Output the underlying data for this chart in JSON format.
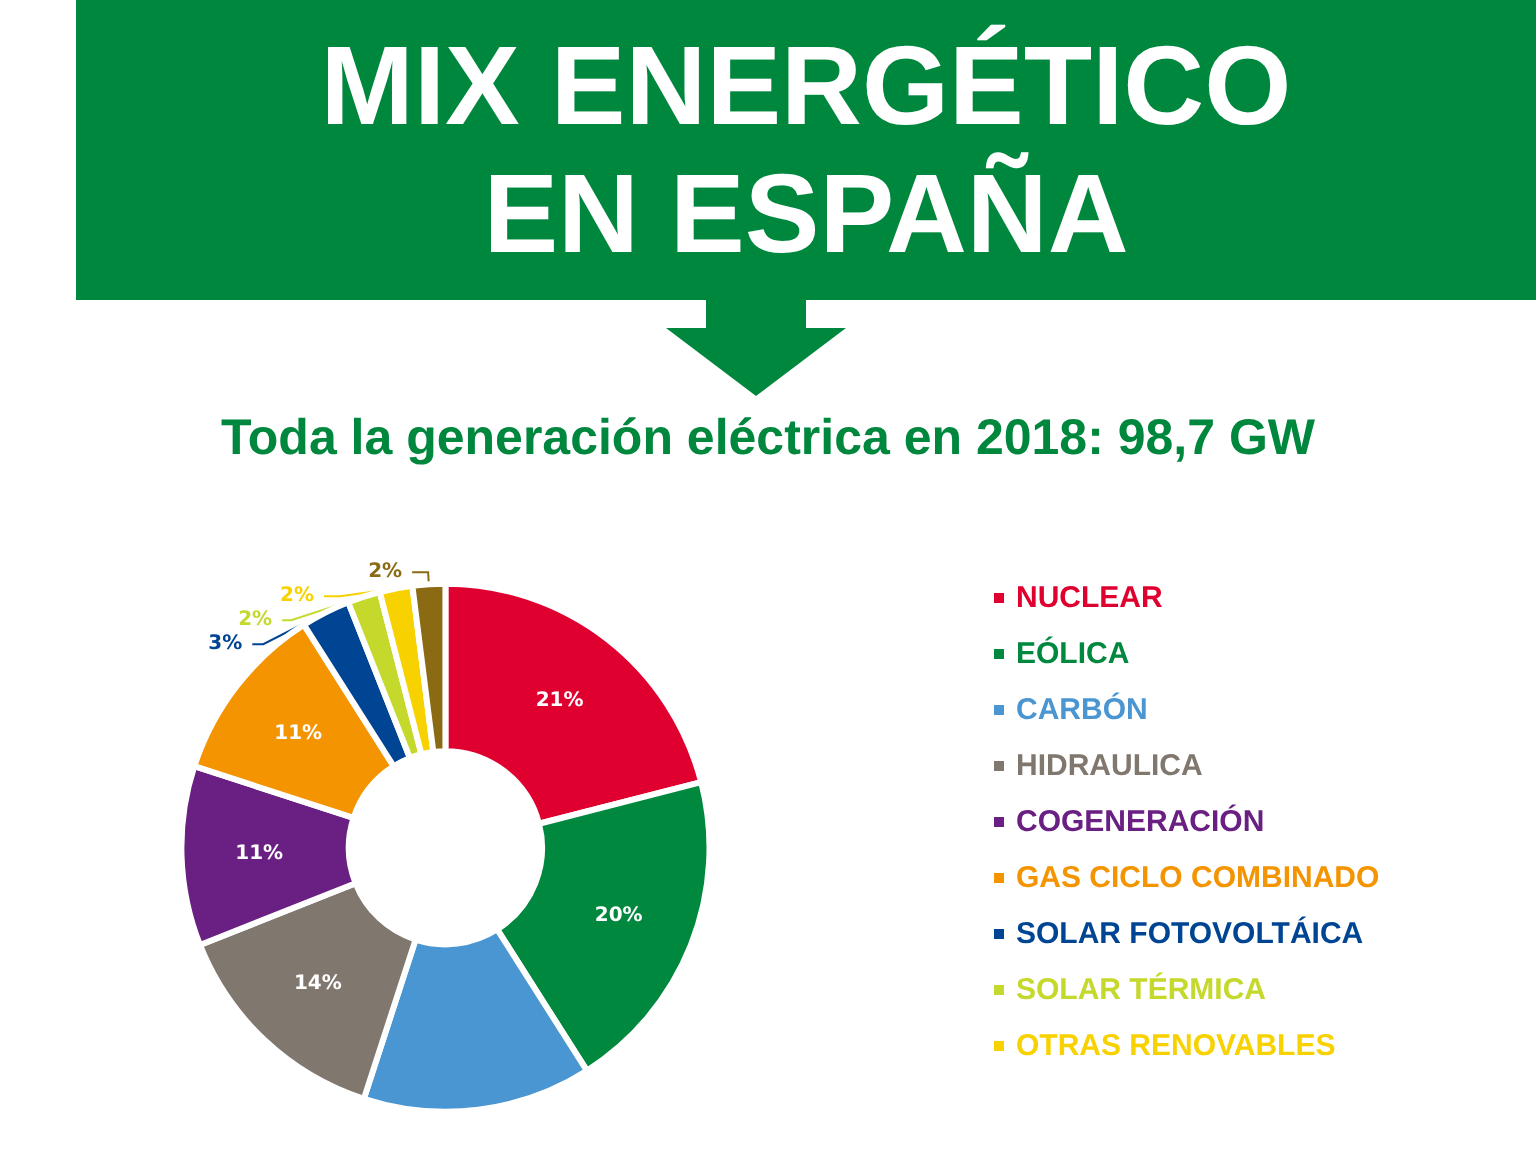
{
  "chart_data": {
    "type": "donut",
    "title": "MIX ENERGÉTICO\nEN ESPAÑA",
    "subtitle": "Toda la generación eléctrica en 2018: 98,7 GW",
    "categories": [
      "NUCLEAR",
      "EÓLICA",
      "CARBÓN",
      "HIDRAULICA",
      "COGENERACIÓN",
      "GAS CICLO COMBINADO",
      "SOLAR FOTOVOLTÁICA",
      "SOLAR TÉRMICA",
      "OTRAS RENOVABLES",
      null
    ],
    "values": [
      21,
      20,
      14,
      14,
      11,
      11,
      3,
      2,
      2,
      2
    ],
    "value_labels": [
      "21%",
      "20%",
      null,
      "14%",
      "11%",
      "11%",
      "3%",
      "2%",
      "2%",
      "2%"
    ],
    "colors": [
      "#e0002f",
      "#00883e",
      "#4a96d2",
      "#80776f",
      "#6a1f82",
      "#f39400",
      "#004593",
      "#c5d92d",
      "#f8d200",
      "#8a6a12"
    ],
    "legend": "right"
  }
}
